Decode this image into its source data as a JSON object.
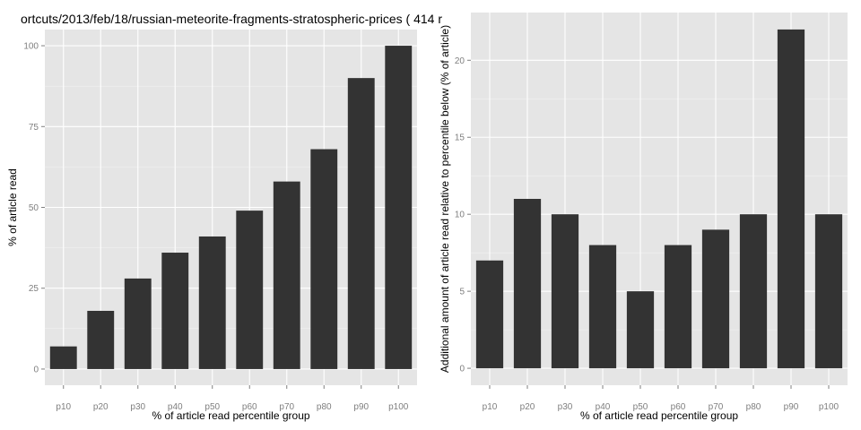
{
  "chart_data": [
    {
      "type": "bar",
      "title": "ortcuts/2013/feb/18/russian-meteorite-fragments-stratospheric-prices ( 414 r",
      "xlabel": "% of article read percentile group",
      "ylabel": "% of article read",
      "categories": [
        "p10",
        "p20",
        "p30",
        "p40",
        "p50",
        "p60",
        "p70",
        "p80",
        "p90",
        "p100"
      ],
      "values": [
        7,
        18,
        28,
        36,
        41,
        49,
        58,
        68,
        90,
        100
      ],
      "ylim": [
        -5,
        105
      ],
      "yticks": [
        0,
        25,
        50,
        75,
        100
      ],
      "grid": true,
      "colors": {
        "bar": "#333333",
        "panel": "#e5e5e5",
        "grid": "#ffffff"
      }
    },
    {
      "type": "bar",
      "title": "",
      "xlabel": "% of article read percentile group",
      "ylabel": "Additional amount of article read relative to percentile below (% of article)",
      "categories": [
        "p10",
        "p20",
        "p30",
        "p40",
        "p50",
        "p60",
        "p70",
        "p80",
        "p90",
        "p100"
      ],
      "values": [
        7,
        11,
        10,
        8,
        5,
        8,
        9,
        10,
        22,
        10
      ],
      "ylim": [
        -1.1,
        23.1
      ],
      "yticks": [
        0,
        5,
        10,
        15,
        20
      ],
      "grid": true,
      "colors": {
        "bar": "#333333",
        "panel": "#e5e5e5",
        "grid": "#ffffff"
      }
    }
  ]
}
